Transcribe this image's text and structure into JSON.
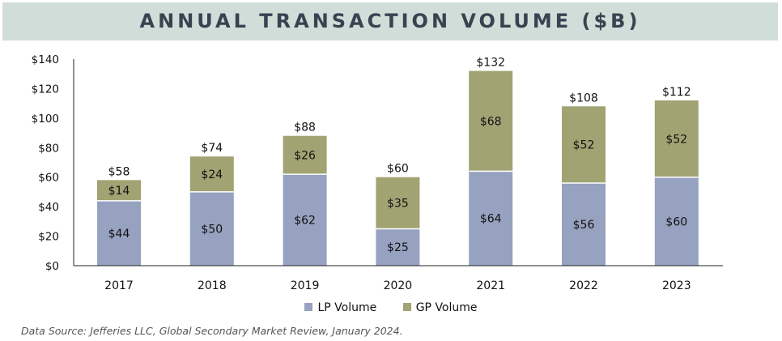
{
  "colors": {
    "lp": "#97a2c0",
    "gp": "#a1a373",
    "title_band": "#d1ddd8",
    "axis": "#222222"
  },
  "chart_data": {
    "type": "bar",
    "stacked": true,
    "title": "ANNUAL TRANSACTION VOLUME ($B)",
    "xlabel": "",
    "ylabel": "",
    "categories": [
      "2017",
      "2018",
      "2019",
      "2020",
      "2021",
      "2022",
      "2023"
    ],
    "series": [
      {
        "name": "LP Volume",
        "values": [
          44,
          50,
          62,
          25,
          64,
          56,
          60
        ],
        "labels": [
          "$44",
          "$50",
          "$62",
          "$25",
          "$64",
          "$56",
          "$60"
        ]
      },
      {
        "name": "GP Volume",
        "values": [
          14,
          24,
          26,
          35,
          68,
          52,
          52
        ],
        "labels": [
          "$14",
          "$24",
          "$26",
          "$35",
          "$68",
          "$52",
          "$52"
        ]
      }
    ],
    "totals": [
      "$58",
      "$74",
      "$88",
      "$60",
      "$132",
      "$108",
      "$112"
    ],
    "ylim": [
      0,
      140
    ],
    "yticks": [
      0,
      20,
      40,
      60,
      80,
      100,
      120,
      140
    ],
    "ytick_labels": [
      "$0",
      "$20",
      "$40",
      "$60",
      "$80",
      "$100",
      "$120",
      "$140"
    ],
    "grid": false,
    "legend_position": "bottom-center"
  },
  "footer": {
    "source": "Data Source:  Jefferies LLC, Global Secondary Market Review, January 2024."
  }
}
